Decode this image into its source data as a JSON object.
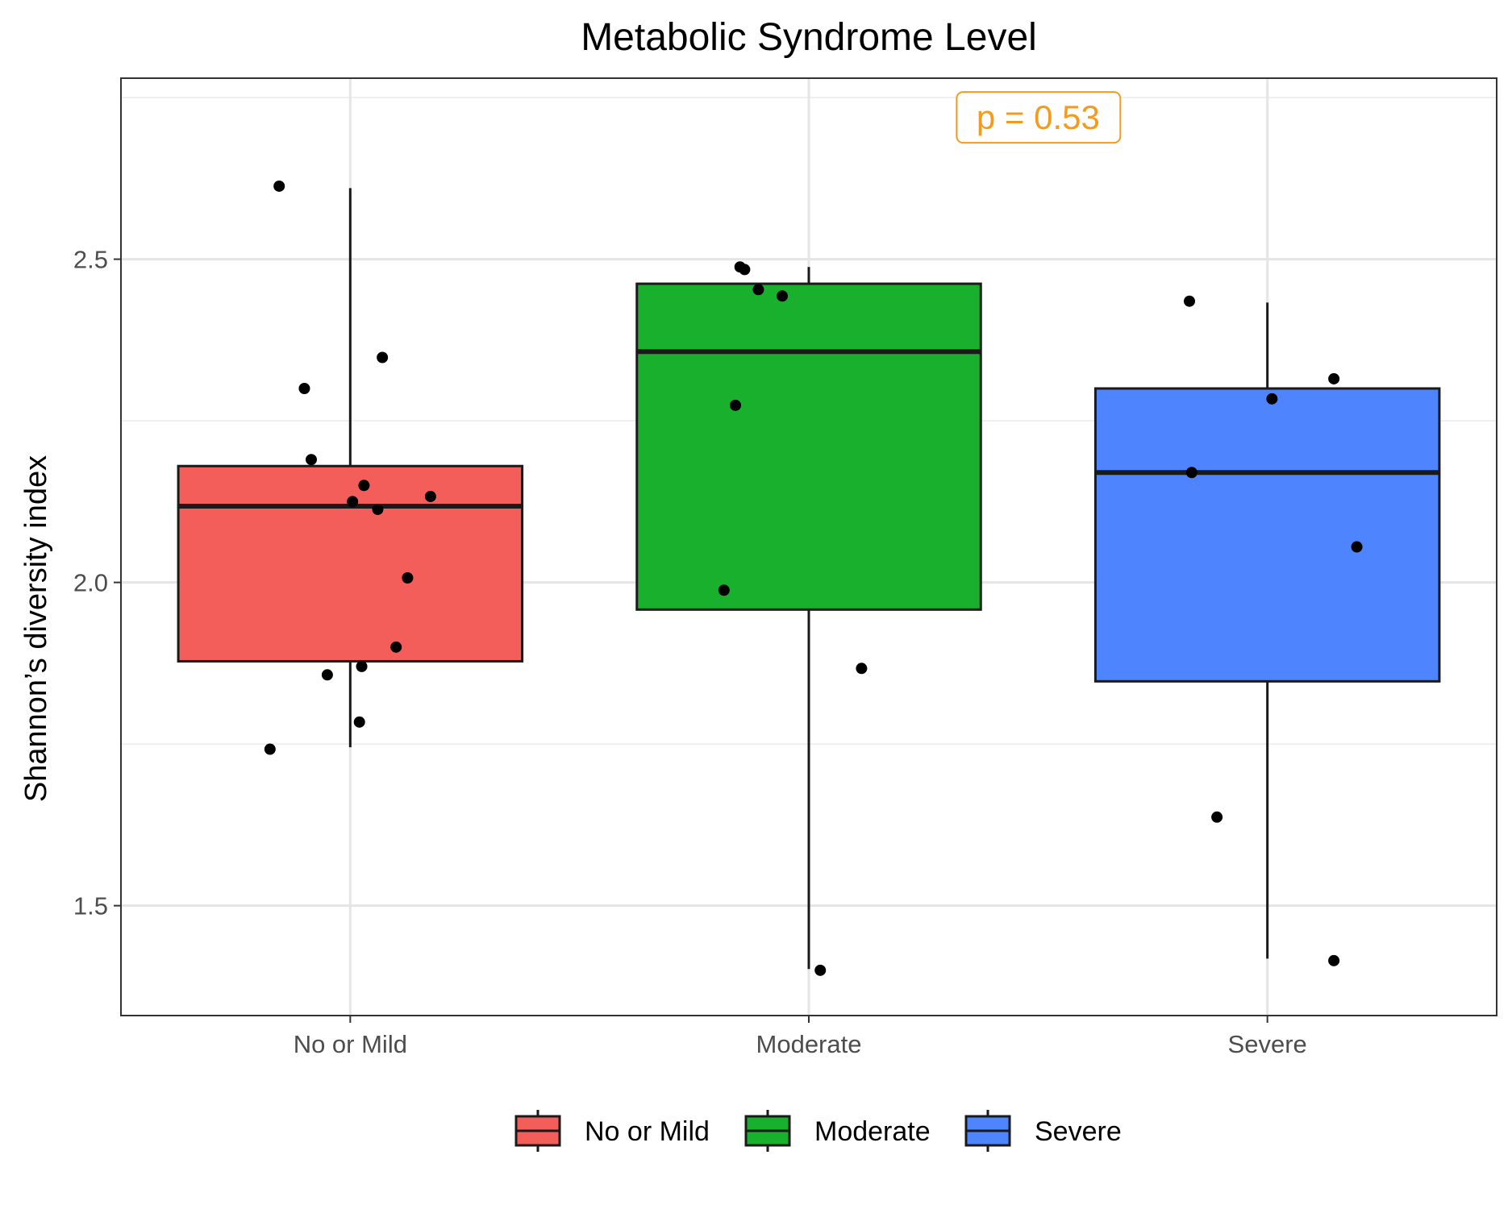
{
  "chart_data": {
    "type": "boxplot",
    "title": "Metabolic Syndrome Level",
    "xlabel": "",
    "ylabel": "Shannon’s diversity index",
    "ylim": [
      1.33,
      2.78
    ],
    "yticks": [
      1.5,
      2.0,
      2.5
    ],
    "ytick_labels": [
      "1.5",
      "2.0",
      "2.5"
    ],
    "grid": true,
    "legend_position": "bottom",
    "annotation": {
      "text": "p = 0.53",
      "color": "#F39B1E",
      "x_between": [
        "Moderate",
        "Severe"
      ],
      "y": 2.72
    },
    "categories": [
      "No or Mild",
      "Moderate",
      "Severe"
    ],
    "series": [
      {
        "name": "No or Mild",
        "color": "#F35E5A",
        "box": {
          "whisker_low": 1.745,
          "q1": 1.878,
          "median": 2.118,
          "q3": 2.18,
          "whisker_high": 2.61
        },
        "points": [
          {
            "offset": -0.155,
            "y": 2.613
          },
          {
            "offset": 0.07,
            "y": 2.348
          },
          {
            "offset": -0.1,
            "y": 2.3
          },
          {
            "offset": -0.085,
            "y": 2.19
          },
          {
            "offset": 0.03,
            "y": 2.15
          },
          {
            "offset": 0.175,
            "y": 2.133
          },
          {
            "offset": 0.005,
            "y": 2.125
          },
          {
            "offset": 0.06,
            "y": 2.113
          },
          {
            "offset": 0.125,
            "y": 2.007
          },
          {
            "offset": 0.1,
            "y": 1.9
          },
          {
            "offset": 0.025,
            "y": 1.87
          },
          {
            "offset": -0.05,
            "y": 1.857
          },
          {
            "offset": 0.02,
            "y": 1.784
          },
          {
            "offset": -0.175,
            "y": 1.742
          }
        ]
      },
      {
        "name": "Moderate",
        "color": "#18B02C",
        "box": {
          "whisker_low": 1.402,
          "q1": 1.958,
          "median": 2.357,
          "q3": 2.462,
          "whisker_high": 2.488
        },
        "points": [
          {
            "offset": -0.15,
            "y": 2.488
          },
          {
            "offset": -0.14,
            "y": 2.484
          },
          {
            "offset": -0.11,
            "y": 2.453
          },
          {
            "offset": -0.058,
            "y": 2.443
          },
          {
            "offset": -0.16,
            "y": 2.274
          },
          {
            "offset": -0.185,
            "y": 1.988
          },
          {
            "offset": 0.115,
            "y": 1.867
          },
          {
            "offset": 0.025,
            "y": 1.4
          }
        ]
      },
      {
        "name": "Severe",
        "color": "#4E85FF",
        "box": {
          "whisker_low": 1.418,
          "q1": 1.847,
          "median": 2.17,
          "q3": 2.3,
          "whisker_high": 2.433
        },
        "points": [
          {
            "offset": -0.17,
            "y": 2.435
          },
          {
            "offset": 0.145,
            "y": 2.315
          },
          {
            "offset": 0.01,
            "y": 2.284
          },
          {
            "offset": -0.165,
            "y": 2.17
          },
          {
            "offset": 0.195,
            "y": 2.055
          },
          {
            "offset": -0.11,
            "y": 1.637
          },
          {
            "offset": 0.145,
            "y": 1.415
          }
        ]
      }
    ]
  }
}
